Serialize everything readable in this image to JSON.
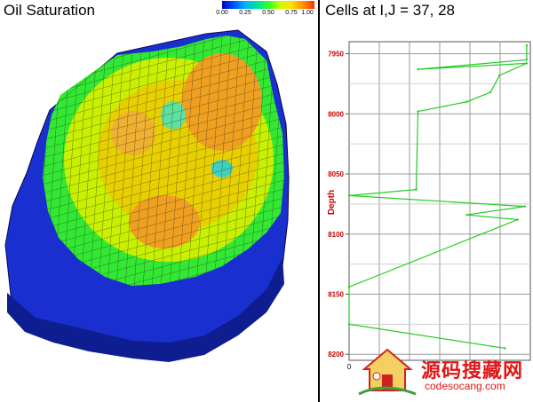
{
  "left_panel": {
    "title": "Oil Saturation",
    "colorbar": {
      "ticks": [
        "0.00",
        "0.25",
        "0.50",
        "0.75",
        "1.00"
      ],
      "colors": [
        "#0000c8",
        "#0050ff",
        "#00b4ff",
        "#00e0a0",
        "#30ff30",
        "#c8ff00",
        "#ffe000",
        "#ff9000",
        "#ff3000"
      ]
    }
  },
  "right_panel": {
    "title": "Cells at I,J = 37, 28"
  },
  "chart_data": {
    "type": "line",
    "title": "Cells at I,J = 37, 28",
    "ylabel": "Depth",
    "xlabel": "",
    "x_tick_labels": [
      "0"
    ],
    "y_tick_labels": [
      "7950",
      "8000",
      "8050",
      "8100",
      "8150",
      "8200"
    ],
    "ylim": [
      7940,
      8205
    ],
    "xlim": [
      0,
      1
    ],
    "grid": true,
    "series_color": "#22cc22",
    "series": [
      {
        "x": [
          0.98,
          0.98,
          0.38,
          0.98,
          0.83,
          0.78,
          0.65,
          0.38,
          0.37,
          0.0,
          0.97,
          0.65,
          0.93,
          0.0,
          0.0,
          0.86
        ],
        "y": [
          7943,
          7955,
          7963,
          7958,
          7968,
          7982,
          7990,
          7998,
          8063,
          8068,
          8077,
          8084,
          8088,
          8144,
          8175,
          8195
        ]
      }
    ]
  },
  "watermark": {
    "text_cn": "源码搜藏网",
    "url": "codesocang.com"
  }
}
